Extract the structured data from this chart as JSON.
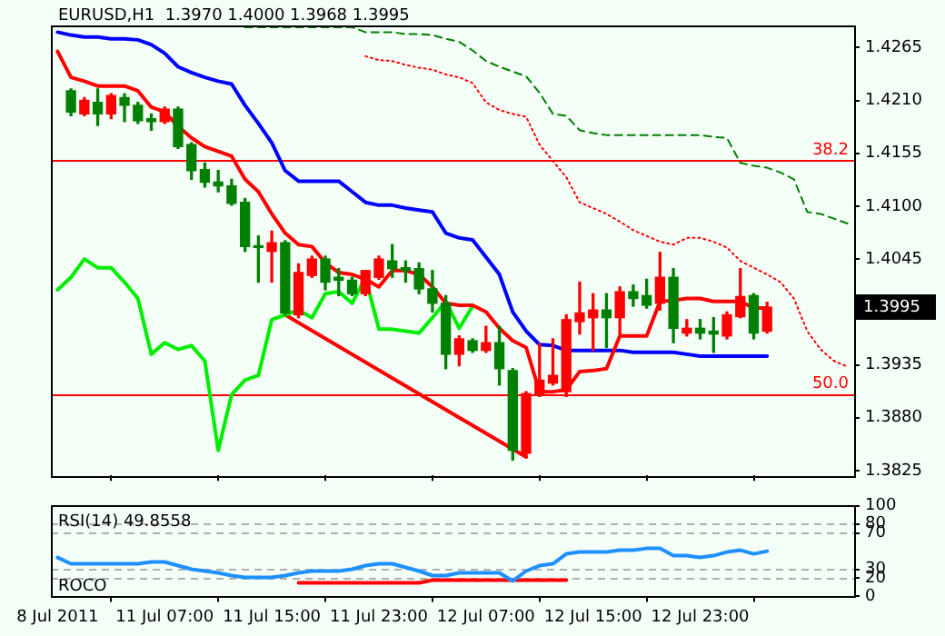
{
  "chart_data": [
    {
      "type": "candlestick",
      "title": "EURUSD,H1  1.3970 1.4000 1.3968 1.3995",
      "ohlc": [
        null,
        [
          1.422,
          1.4222,
          1.4194,
          1.4198
        ],
        [
          1.4196,
          1.4213,
          1.4194,
          1.421
        ],
        [
          1.4208,
          1.4222,
          1.4184,
          1.4196
        ],
        [
          1.4196,
          1.4217,
          1.4191,
          1.4215
        ],
        [
          1.4213,
          1.4217,
          1.4188,
          1.4205
        ],
        [
          1.4205,
          1.4208,
          1.4186,
          1.4189
        ],
        [
          1.4191,
          1.4196,
          1.4179,
          1.4188
        ],
        [
          1.4188,
          1.4203,
          1.4186,
          1.4201
        ],
        [
          1.4201,
          1.4203,
          1.416,
          1.4162
        ],
        [
          1.4164,
          1.4166,
          1.4128,
          1.4137
        ],
        [
          1.4138,
          1.4145,
          1.412,
          1.4125
        ],
        [
          1.4125,
          1.4137,
          1.4115,
          1.4121
        ],
        [
          1.4121,
          1.4128,
          1.4101,
          1.4103
        ],
        [
          1.4104,
          1.4108,
          1.4053,
          1.4058
        ],
        [
          1.4058,
          1.4069,
          1.4021,
          1.4057
        ],
        [
          1.4053,
          1.4074,
          1.4021,
          1.4062
        ],
        [
          1.4062,
          1.4064,
          1.3987,
          1.3989
        ],
        [
          1.3987,
          1.404,
          1.3984,
          1.4031
        ],
        [
          1.4028,
          1.4048,
          1.4026,
          1.4045
        ],
        [
          1.4045,
          1.4048,
          1.4013,
          1.4021
        ],
        [
          1.4026,
          1.4035,
          1.4007,
          1.4023
        ],
        [
          1.4023,
          1.4026,
          1.4007,
          1.4009
        ],
        [
          1.4009,
          1.4033,
          1.4007,
          1.4033
        ],
        [
          1.4026,
          1.4048,
          1.4024,
          1.4045
        ],
        [
          1.4043,
          1.406,
          1.4026,
          1.4035
        ],
        [
          1.4036,
          1.4043,
          1.4021,
          1.4033
        ],
        [
          1.4035,
          1.4041,
          1.4009,
          1.4014
        ],
        [
          1.4014,
          1.4033,
          1.399,
          1.3999
        ],
        [
          1.3999,
          1.4007,
          1.3931,
          1.3946
        ],
        [
          1.3946,
          1.3965,
          1.3934,
          1.3962
        ],
        [
          1.396,
          1.3962,
          1.3948,
          1.395
        ],
        [
          1.395,
          1.3975,
          1.3948,
          1.3958
        ],
        [
          1.3958,
          1.3975,
          1.3914,
          1.3931
        ],
        [
          1.3929,
          1.3931,
          1.3836,
          1.3846
        ],
        [
          1.3843,
          1.3907,
          1.3839,
          1.3905
        ],
        [
          1.3905,
          1.3957,
          1.3902,
          1.3919
        ],
        [
          1.3916,
          1.3962,
          1.3914,
          1.3924
        ],
        [
          1.3907,
          1.3987,
          1.3902,
          1.3982
        ],
        [
          1.398,
          1.4021,
          1.3967,
          1.3989
        ],
        [
          1.3984,
          1.4009,
          1.395,
          1.3992
        ],
        [
          1.3992,
          1.4009,
          1.3953,
          1.3984
        ],
        [
          1.3984,
          1.4016,
          1.3967,
          1.4011
        ],
        [
          1.4011,
          1.4018,
          1.3996,
          1.4004
        ],
        [
          1.4007,
          1.4024,
          1.3994,
          1.3997
        ],
        [
          1.3999,
          1.4052,
          1.3992,
          1.4026
        ],
        [
          1.4026,
          1.4035,
          1.3958,
          1.3973
        ],
        [
          1.3968,
          1.3982,
          1.3965,
          1.3973
        ],
        [
          1.3973,
          1.3982,
          1.3962,
          1.3968
        ],
        [
          1.397,
          1.3984,
          1.3948,
          1.3967
        ],
        [
          1.3965,
          1.399,
          1.3962,
          1.3987
        ],
        [
          1.3985,
          1.4035,
          1.3984,
          1.4006
        ],
        [
          1.4007,
          1.4009,
          1.3962,
          1.3968
        ],
        [
          1.397,
          1.4,
          1.3968,
          1.3995
        ],
        null,
        null,
        null,
        null,
        null,
        null
      ],
      "colors": [
        null,
        "#008000",
        "#ff0000",
        "#008000",
        "#ff0000",
        "#008000",
        "#008000",
        "#008000",
        "#ff0000",
        "#008000",
        "#008000",
        "#008000",
        "#008000",
        "#008000",
        "#008000",
        "#008000",
        "#ff0000",
        "#008000",
        "#ff0000",
        "#ff0000",
        "#008000",
        "#008000",
        "#008000",
        "#ff0000",
        "#ff0000",
        "#008000",
        "#008000",
        "#008000",
        "#008000",
        "#008000",
        "#ff0000",
        "#008000",
        "#ff0000",
        "#008000",
        "#008000",
        "#ff0000",
        "#ff0000",
        "#ff0000",
        "#ff0000",
        "#ff0000",
        "#ff0000",
        "#008000",
        "#ff0000",
        "#008000",
        "#008000",
        "#ff0000",
        "#008000",
        "#ff0000",
        "#008000",
        "#008000",
        "#ff0000",
        "#ff0000",
        "#008000",
        "#ff0000",
        null,
        null,
        null,
        null,
        null,
        null
      ],
      "series": [
        {
          "type": "line",
          "color": "#ff0000",
          "values": [
            1.4261,
            1.4234,
            1.423,
            1.4225,
            1.4225,
            1.4225,
            1.422,
            1.4203,
            1.4198,
            1.4183,
            1.4171,
            1.4162,
            1.4157,
            1.4152,
            1.4128,
            1.4115,
            1.4092,
            1.4072,
            1.406,
            1.4058,
            1.4041,
            1.4031,
            1.4029,
            1.4024,
            1.4016,
            1.4033,
            1.4033,
            1.4029,
            1.4016,
            1.3999,
            1.3997,
            1.3997,
            1.399,
            1.3973,
            1.396,
            1.3953,
            1.3907,
            1.3907,
            1.3909,
            1.3928,
            1.3929,
            1.3931,
            1.3965,
            1.3965,
            1.3965,
            1.4001,
            1.4002,
            1.4004,
            1.4004,
            1.4001,
            1.4001,
            1.4001,
            1.3994,
            1.3994,
            null,
            null,
            null,
            null,
            null,
            null
          ]
        },
        {
          "type": "line",
          "color": "#0000ff",
          "values": [
            1.4281,
            1.4278,
            1.4276,
            1.4276,
            1.4274,
            1.4274,
            1.4273,
            1.4268,
            1.4259,
            1.4245,
            1.4239,
            1.4234,
            1.423,
            1.4227,
            1.4205,
            1.4186,
            1.4166,
            1.4137,
            1.4126,
            1.4126,
            1.4126,
            1.4126,
            1.4115,
            1.4104,
            1.4101,
            1.4101,
            1.4098,
            1.4096,
            1.4094,
            1.4072,
            1.4067,
            1.4065,
            1.4047,
            1.4029,
            1.399,
            1.397,
            1.3956,
            1.3955,
            1.395,
            1.395,
            1.395,
            1.395,
            1.395,
            1.3948,
            1.3948,
            1.3948,
            1.3948,
            1.3946,
            1.3944,
            1.3944,
            1.3944,
            1.3944,
            1.3944,
            1.3944,
            null,
            null,
            null,
            null,
            null,
            null
          ]
        },
        {
          "type": "line",
          "color": "#00ee00",
          "values": [
            1.4013,
            1.4026,
            1.4045,
            1.4036,
            1.4036,
            1.4021,
            1.4004,
            1.3946,
            1.3958,
            1.3951,
            1.3955,
            1.3939,
            1.3846,
            1.3904,
            1.3919,
            1.3924,
            1.3982,
            1.3987,
            1.3992,
            1.3984,
            1.4009,
            1.4011,
            1.3999,
            1.4026,
            1.3972,
            1.3972,
            1.397,
            1.3968,
            1.3984,
            1.4001,
            1.3973,
            1.3996,
            null,
            null,
            null,
            null,
            null,
            null,
            null,
            null,
            null,
            null,
            null,
            null,
            null,
            null,
            null,
            null,
            null,
            null,
            null,
            null,
            null,
            null,
            null,
            null,
            null,
            null,
            null,
            null
          ]
        },
        {
          "type": "line",
          "color": "#ff0000",
          "line_style": "dotted",
          "values": [
            null,
            null,
            null,
            null,
            null,
            null,
            null,
            null,
            null,
            null,
            null,
            null,
            null,
            null,
            null,
            null,
            null,
            null,
            null,
            null,
            null,
            null,
            null,
            1.4256,
            1.4252,
            1.4251,
            1.4247,
            1.4244,
            1.4242,
            1.4237,
            1.4234,
            1.4228,
            1.4208,
            1.42,
            1.4196,
            1.4193,
            1.4164,
            1.4147,
            1.413,
            1.4104,
            1.4098,
            1.4092,
            1.4084,
            1.4075,
            1.4069,
            1.4063,
            1.406,
            1.4067,
            1.4067,
            1.4063,
            1.4057,
            1.4043,
            1.4036,
            1.4029,
            1.4021,
            1.4004,
            1.397,
            1.3951,
            1.3939,
            1.3933
          ]
        },
        {
          "type": "line",
          "color": "#008000",
          "line_style": "dashed",
          "values": [
            null,
            null,
            null,
            null,
            null,
            null,
            null,
            null,
            null,
            null,
            null,
            null,
            null,
            null,
            1.4286,
            1.4286,
            1.4286,
            1.4286,
            1.4286,
            1.4286,
            1.4286,
            1.4286,
            1.4286,
            1.4281,
            1.4281,
            1.4281,
            1.4279,
            1.4279,
            1.4278,
            1.4274,
            1.4271,
            1.4262,
            1.4251,
            1.4245,
            1.424,
            1.4235,
            1.4218,
            1.4196,
            1.4194,
            1.4179,
            1.4176,
            1.4174,
            1.4174,
            1.4174,
            1.4174,
            1.4174,
            1.4174,
            1.4174,
            1.4174,
            1.4172,
            1.4171,
            1.4145,
            1.4142,
            1.414,
            1.4135,
            1.4128,
            1.4094,
            1.4092,
            1.4087,
            1.4082
          ]
        },
        {
          "type": "line",
          "color": "#ff0000",
          "values": [
            null,
            null,
            null,
            null,
            null,
            null,
            null,
            null,
            null,
            null,
            null,
            null,
            null,
            null,
            null,
            null,
            null,
            1.3987,
            null,
            null,
            null,
            null,
            null,
            null,
            null,
            null,
            null,
            null,
            null,
            null,
            null,
            null,
            null,
            null,
            null,
            1.3839,
            null,
            null,
            null,
            null,
            null,
            null,
            null,
            null,
            null,
            null,
            null,
            null,
            null,
            null,
            null,
            null,
            null,
            null,
            null,
            null,
            null,
            null,
            null,
            null
          ]
        }
      ],
      "ylim": [
        1.382,
        1.4288
      ],
      "yticks": [
        1.4265,
        {
          "value": 1.421,
          "label": "1.4210"
        },
        1.4155,
        {
          "value": 1.41,
          "label": "1.4100"
        },
        1.4045,
        1.3935,
        {
          "value": 1.388,
          "label": "1.3880"
        },
        1.3825
      ],
      "tick_labels": "y",
      "marker": "none",
      "ref_lines": [
        {
          "axis": "y",
          "value": 1.4148,
          "color": "#ff0000"
        },
        {
          "axis": "y",
          "value": 1.3905,
          "color": "#ff0000"
        }
      ],
      "annotations": [
        "1.3995",
        {
          "text": "38.2",
          "y": 1.4148
        },
        {
          "text": "50.0",
          "y": 1.3905
        }
      ]
    },
    {
      "type": "line",
      "categories": [
        "8 Jul 2011",
        null,
        null,
        null,
        null,
        null,
        null,
        null,
        "11 Jul 07:00",
        null,
        null,
        null,
        null,
        null,
        null,
        null,
        "11 Jul 15:00",
        null,
        null,
        null,
        null,
        null,
        null,
        null,
        "11 Jul 23:00",
        null,
        null,
        null,
        null,
        null,
        null,
        null,
        "12 Jul 07:00",
        null,
        null,
        null,
        null,
        null,
        null,
        null,
        "12 Jul 15:00",
        null,
        null,
        null,
        null,
        null,
        null,
        null,
        "12 Jul 23:00",
        null,
        null,
        null,
        null,
        null,
        null,
        null,
        null,
        null,
        null,
        null
      ],
      "series": [
        {
          "color": "#1e90ff",
          "values": [
            43,
            36,
            36,
            36,
            36,
            36,
            36,
            38,
            38,
            34,
            30,
            28,
            26,
            23,
            21,
            21,
            21,
            23,
            26,
            28,
            28,
            28,
            30,
            34,
            36,
            36,
            32,
            28,
            23,
            23,
            26,
            26,
            26,
            26,
            17,
            28,
            34,
            36,
            47,
            49,
            49,
            49,
            51,
            51,
            53,
            53,
            45,
            45,
            43,
            45,
            49,
            51,
            47,
            50,
            null,
            null,
            null,
            null,
            null,
            null
          ]
        },
        {
          "color": "#ff0000",
          "values": [
            null,
            null,
            null,
            null,
            null,
            null,
            null,
            null,
            null,
            null,
            null,
            null,
            null,
            null,
            null,
            null,
            null,
            null,
            15,
            15,
            15,
            15,
            15,
            15,
            15,
            15,
            15,
            15,
            18,
            18,
            18,
            18,
            18,
            18,
            18,
            18,
            18,
            18,
            18,
            null,
            null,
            null,
            null,
            null,
            null,
            null,
            null,
            null,
            null,
            null,
            null,
            null,
            null,
            null,
            null,
            null,
            null,
            null,
            null,
            null
          ]
        }
      ],
      "ylim": [
        0,
        100
      ],
      "yticks": [
        0,
        20,
        30,
        70,
        80,
        100
      ],
      "marker": "none",
      "ref_lines": [
        {
          "axis": "y",
          "value": 80,
          "color": "#b0b0b0",
          "line_style": "dashed"
        },
        {
          "axis": "y",
          "value": 70,
          "color": "#b0b0b0",
          "line_style": "dashed"
        },
        {
          "axis": "y",
          "value": 30,
          "color": "#b0b0b0",
          "line_style": "dashed"
        },
        {
          "axis": "y",
          "value": 20,
          "color": "#b0b0b0",
          "line_style": "dashed"
        }
      ],
      "annotations": [
        "RSI(14) 49.8558",
        "ROCO"
      ]
    }
  ]
}
